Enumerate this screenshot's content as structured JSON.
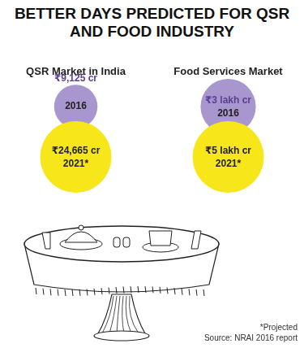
{
  "title": "BETTER DAYS PREDICTED FOR QSR AND FOOD INDUSTRY",
  "chart_data": [
    {
      "type": "bubble",
      "title": "QSR Market in India",
      "categories": [
        "2016",
        "2021*"
      ],
      "values": [
        9125,
        24665
      ],
      "value_labels": [
        "₹9,125 cr",
        "₹24,665 cr"
      ],
      "colors": [
        "#a896cf",
        "#f6e61a"
      ],
      "data_labels": true,
      "tick_labels": false
    },
    {
      "type": "bubble",
      "title": "Food Services Market",
      "categories": [
        "2016",
        "2021*"
      ],
      "values": [
        3,
        5
      ],
      "value_labels": [
        "₹3 lakh cr",
        "₹5 lakh cr"
      ],
      "colors": [
        "#a896cf",
        "#f6e61a"
      ],
      "data_labels": true,
      "tick_labels": false
    }
  ],
  "footnote": "*Projected",
  "source": "Source: NRAI 2016 report"
}
